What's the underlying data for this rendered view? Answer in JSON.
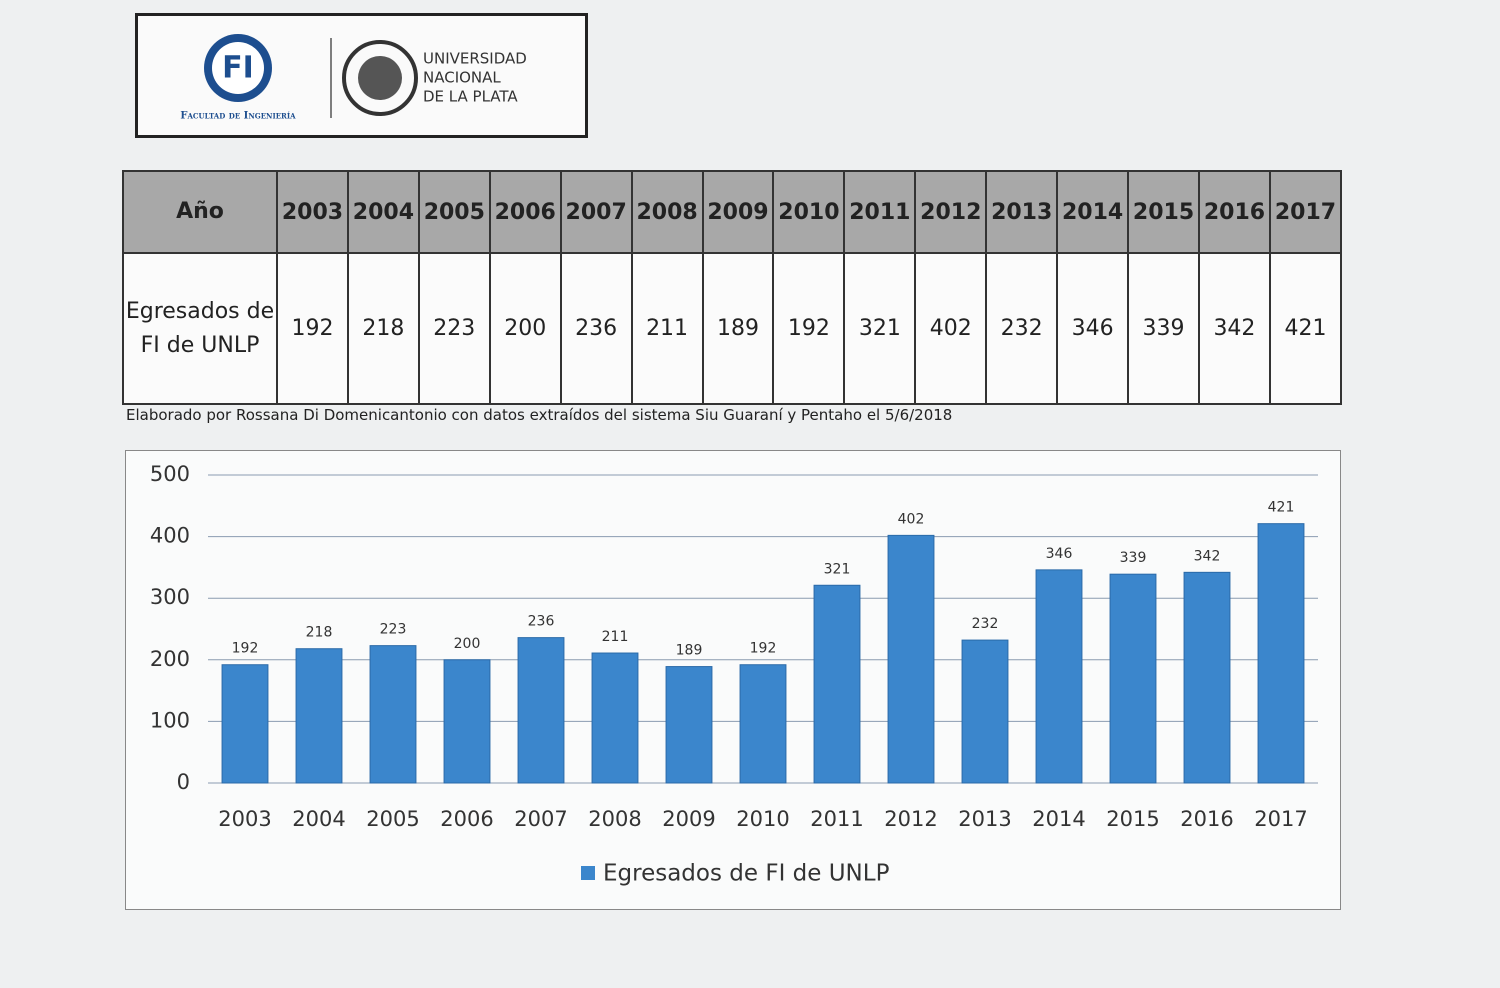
{
  "header": {
    "logo_mark": "FI",
    "faculty": "Facultad de Ingeniería",
    "university": [
      "UNIVERSIDAD",
      "NACIONAL",
      "DE LA PLATA"
    ]
  },
  "table": {
    "header_label": "Año",
    "row_label": "Egresados de FI de UNLP",
    "years": [
      "2003",
      "2004",
      "2005",
      "2006",
      "2007",
      "2008",
      "2009",
      "2010",
      "2011",
      "2012",
      "2013",
      "2014",
      "2015",
      "2016",
      "2017"
    ],
    "values": [
      192,
      218,
      223,
      200,
      236,
      211,
      189,
      192,
      321,
      402,
      232,
      346,
      339,
      342,
      421
    ]
  },
  "note": "Elaborado por Rossana Di Domenicantonio con datos extraídos del sistema Siu Guaraní y Pentaho el 5/6/2018",
  "chart_data": {
    "type": "bar",
    "categories": [
      "2003",
      "2004",
      "2005",
      "2006",
      "2007",
      "2008",
      "2009",
      "2010",
      "2011",
      "2012",
      "2013",
      "2014",
      "2015",
      "2016",
      "2017"
    ],
    "series": [
      {
        "name": "Egresados de FI de UNLP",
        "color": "#3b86cc",
        "values": [
          192,
          218,
          223,
          200,
          236,
          211,
          189,
          192,
          321,
          402,
          232,
          346,
          339,
          342,
          421
        ]
      }
    ],
    "ylim": [
      0,
      500
    ],
    "yticks": [
      0,
      100,
      200,
      300,
      400,
      500
    ],
    "grid": true,
    "data_labels": true,
    "legend": "bottom"
  }
}
